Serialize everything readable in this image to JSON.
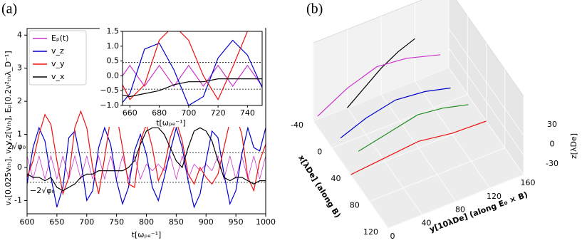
{
  "chart_data": [
    {
      "type": "line",
      "panel_label": "(a)",
      "xlabel": "t[ωₚₑ⁻¹]",
      "ylabel": "vₓ[0.025vₜₕ], v_y,z[vₜₕ], Eₚ[0.2v²ₜₕλ_D⁻¹]",
      "x": [
        600,
        610,
        620,
        630,
        640,
        650,
        660,
        670,
        680,
        690,
        700,
        710,
        720,
        730,
        740,
        750,
        760,
        770,
        780,
        790,
        800,
        810,
        820,
        830,
        840,
        850,
        860,
        870,
        880,
        890,
        900,
        910,
        920,
        930,
        940,
        950,
        960,
        970,
        980,
        990,
        1000
      ],
      "series": [
        {
          "name": "Eₚ(t)",
          "color": "#cc33cc",
          "values": [
            0.35,
            -0.35,
            0.35,
            -0.35,
            0.35,
            -0.35,
            0.35,
            -0.35,
            0.35,
            -0.35,
            0.35,
            -0.35,
            0.35,
            -0.35,
            0.35,
            -0.35,
            0.35,
            -0.35,
            0.35,
            -0.35,
            0.1,
            -0.1,
            0.1,
            -0.1,
            0.35,
            -0.35,
            0.35,
            -0.35,
            0.1,
            -0.1,
            0.1,
            -0.1,
            0.35,
            -0.35,
            0.35,
            -0.35,
            0.35,
            -0.35,
            0.35,
            -0.35,
            0.35
          ]
        },
        {
          "name": "v_z",
          "color": "#0000cc",
          "values": [
            -0.5,
            0.6,
            1.2,
            0.8,
            -0.3,
            -1.2,
            -0.6,
            0.9,
            1.1,
            0.2,
            -1.0,
            -0.7,
            0.6,
            1.2,
            0.7,
            -0.4,
            -1.1,
            -0.6,
            0.5,
            1.0,
            0.4,
            -0.6,
            -1.0,
            -0.3,
            0.5,
            1.2,
            0.6,
            -0.4,
            -1.2,
            -0.8,
            0.2,
            1.1,
            0.9,
            -0.2,
            -1.1,
            -0.7,
            0.4,
            1.2,
            0.6,
            0.5,
            1.2
          ]
        },
        {
          "name": "v_y",
          "color": "#ee1111",
          "values": [
            -0.3,
            0.2,
            1.0,
            1.6,
            1.3,
            0.2,
            -0.8,
            -0.3,
            1.2,
            1.7,
            1.2,
            0.0,
            -0.8,
            0.3,
            1.5,
            1.6,
            0.6,
            -0.5,
            -0.6,
            0.8,
            1.3,
            0.6,
            -0.4,
            0.0,
            0.9,
            1.4,
            0.8,
            -0.2,
            -0.5,
            0.0,
            -0.3,
            -0.5,
            -0.2,
            0.6,
            1.4,
            1.6,
            1.0,
            -0.3,
            -0.7,
            0.2,
            0.7
          ]
        },
        {
          "name": "v_x",
          "color": "#000000",
          "values": [
            -0.2,
            -0.3,
            -0.3,
            -0.4,
            -0.3,
            -0.6,
            -0.7,
            -0.6,
            -0.5,
            -0.3,
            -0.2,
            -0.2,
            -0.1,
            -0.1,
            -0.1,
            -0.1,
            -0.1,
            0.0,
            0.2,
            0.7,
            1.1,
            1.2,
            1.2,
            1.0,
            0.6,
            0.2,
            0.0,
            0.6,
            1.1,
            1.2,
            1.1,
            0.8,
            0.2,
            -0.3,
            -0.4,
            -0.3,
            -0.3,
            -0.4,
            -0.5,
            -0.4,
            -0.4
          ]
        }
      ],
      "xlim": [
        600,
        1000
      ],
      "ylim": [
        -1.4,
        4.2
      ],
      "xticks": [
        600,
        650,
        700,
        750,
        800,
        850,
        900,
        950,
        1000
      ],
      "yticks": [
        -1,
        0,
        1,
        2,
        3,
        4
      ],
      "reference_lines": [
        {
          "value": 0.45,
          "label": "2√φ₀"
        },
        {
          "value": -0.45,
          "label": "−2√φ₀"
        }
      ],
      "legend": "upper left",
      "inset": {
        "xlabel": "t[ωₚₑ⁻¹]",
        "xlim": [
          655,
          750
        ],
        "ylim": [
          -1,
          1.5
        ],
        "xticks": [
          660,
          680,
          700,
          720,
          740
        ],
        "yticks": [
          {
            "value": -1,
            "label": "−1.0"
          },
          {
            "value": -0.5,
            "label": "−0.5"
          },
          {
            "value": 0,
            "label": "0.0"
          },
          {
            "value": 0.5,
            "label": "0.5"
          },
          {
            "value": 1,
            "label": "1.0"
          },
          {
            "value": 1.5,
            "label": "1.5"
          }
        ]
      }
    },
    {
      "type": "line3d",
      "panel_label": "(b)",
      "xlabel": "x[λDe] (along B)",
      "ylabel": "y[10λDe] (along E₀ × B)",
      "zlabel": "z[λDe]",
      "xlim": [
        -40,
        120
      ],
      "ylim": [
        0,
        160
      ],
      "zlim": [
        -30,
        30
      ],
      "xticks": [
        -40,
        0,
        40,
        80,
        120
      ],
      "yticks": [
        0,
        40,
        80,
        120,
        160
      ],
      "zticks": [
        -30,
        0,
        30
      ],
      "series": [
        {
          "color": "#000000",
          "x": [
            -40,
            -40,
            -40,
            -40,
            -40
          ],
          "y": [
            40,
            60,
            80,
            100,
            120
          ],
          "z": [
            -30,
            -10,
            10,
            25,
            35
          ]
        },
        {
          "color": "#cc33cc",
          "x": [
            -40,
            -40,
            -40,
            -40,
            -40
          ],
          "y": [
            5,
            40,
            75,
            110,
            150
          ],
          "z": [
            -25,
            0,
            15,
            10,
            -5
          ]
        },
        {
          "color": "#0000cc",
          "x": [
            0,
            0,
            0,
            0,
            0
          ],
          "y": [
            10,
            40,
            75,
            110,
            140
          ],
          "z": [
            -20,
            -5,
            5,
            0,
            -10
          ]
        },
        {
          "color": "#228b22",
          "x": [
            20,
            20,
            20,
            20,
            20
          ],
          "y": [
            20,
            55,
            90,
            120,
            150
          ],
          "z": [
            -25,
            -15,
            -5,
            -10,
            -20
          ]
        },
        {
          "color": "#ee1111",
          "x": [
            40,
            40,
            40,
            40,
            40
          ],
          "y": [
            0,
            40,
            80,
            120,
            160
          ],
          "z": [
            -30,
            -25,
            -20,
            -28,
            -30
          ]
        }
      ]
    }
  ]
}
